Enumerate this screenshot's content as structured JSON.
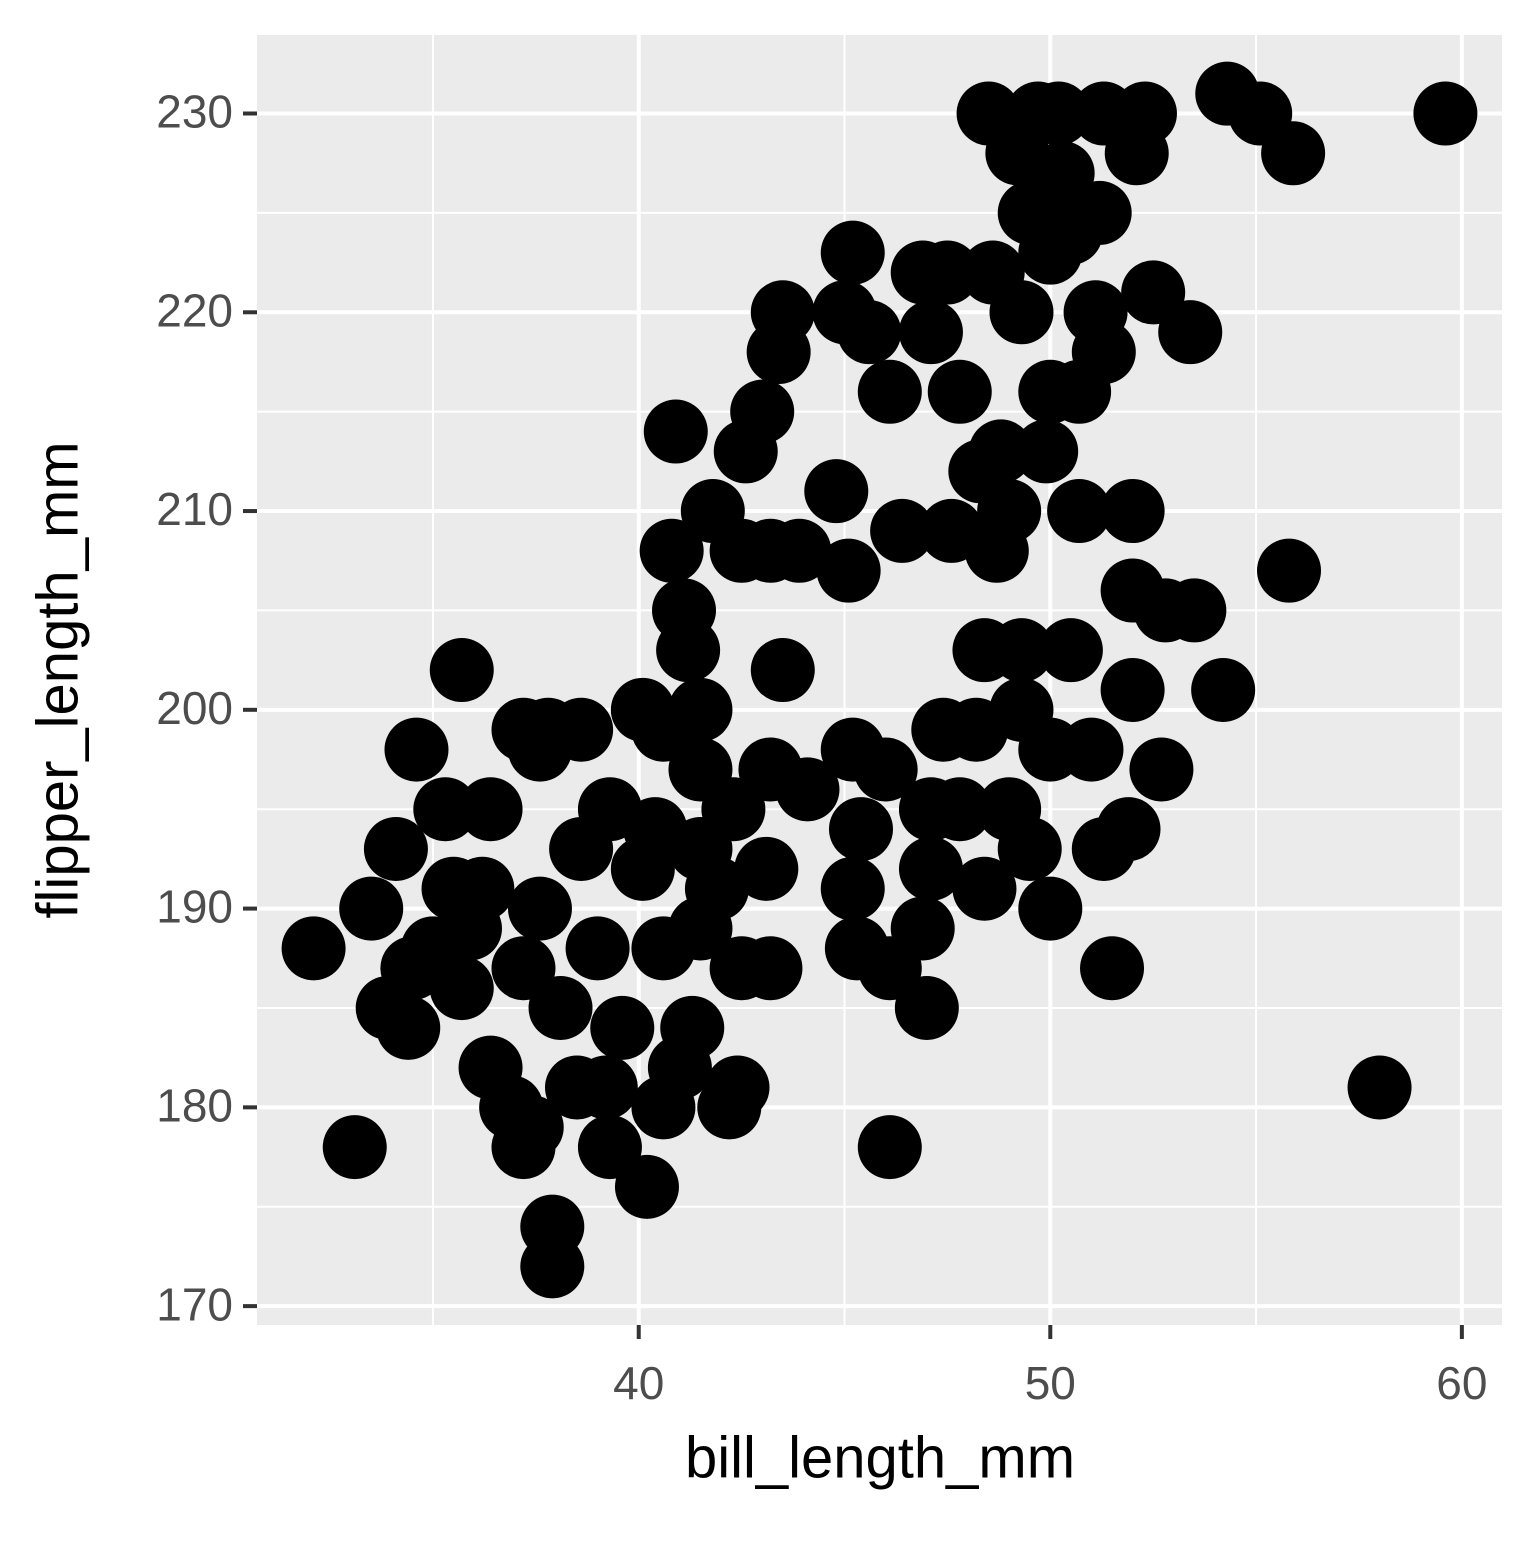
{
  "chart_data": {
    "type": "scatter",
    "x_label": "bill_length_mm",
    "y_label": "flipper_length_mm",
    "xlim": [
      30.725,
      60.975
    ],
    "ylim": [
      169.05,
      233.95
    ],
    "xticks": [
      40,
      50,
      60
    ],
    "yticks": [
      170,
      180,
      190,
      200,
      210,
      220,
      230
    ],
    "xminor": [
      35,
      45,
      55
    ],
    "yminor": [
      175,
      185,
      195,
      205,
      215,
      225
    ],
    "grid": true,
    "color": "#000000",
    "x": [
      32.1,
      33.1,
      33.5,
      34.1,
      34.6,
      33.9,
      34.4,
      35.7,
      35.3,
      36.4,
      34.5,
      35.0,
      35.7,
      36.2,
      36.4,
      37.2,
      37.2,
      37.8,
      37.6,
      37.9,
      37.9,
      38.6,
      38.5,
      39.2,
      39.3,
      40.2,
      40.6,
      42.2,
      42.4,
      40.1,
      40.6,
      41.5,
      41.2,
      41.1,
      40.8,
      40.9,
      41.8,
      42.5,
      42.6,
      43.0,
      43.4,
      43.5,
      43.2,
      43.9,
      43.5,
      43.2,
      44.1,
      43.1,
      42.5,
      43.2,
      41.9,
      41.5,
      41.3,
      41.0,
      39.6,
      38.1,
      39.0,
      37.6,
      37.2,
      38.6,
      40.1,
      39.3,
      40.4,
      41.5,
      42.3,
      36.9,
      37.4,
      45.2,
      45.1,
      45.0,
      44.8,
      45.6,
      46.1,
      46.4,
      46.9,
      47.5,
      47.1,
      47.8,
      47.6,
      48.3,
      48.8,
      49.0,
      48.7,
      48.6,
      49.3,
      49.5,
      50.0,
      50.3,
      51.2,
      50.5,
      50.0,
      50.7,
      51.3,
      51.1,
      49.9,
      48.5,
      49.7,
      50.2,
      49.2,
      51.3,
      52.3,
      52.1,
      54.3,
      55.1,
      55.9,
      59.6,
      52.5,
      53.4,
      50.7,
      52.0,
      52.0,
      52.8,
      53.5,
      55.8,
      54.2,
      58.0,
      52.0,
      52.7,
      51.5,
      51.3,
      51.9,
      51.0,
      50.5,
      50.0,
      49.5,
      49.0,
      49.3,
      50.0,
      49.3,
      48.4,
      48.4,
      47.4,
      48.2,
      47.8,
      47.1,
      46.9,
      47.0,
      46.1,
      46.1,
      45.3,
      45.2,
      45.4,
      45.2,
      46.0,
      47.1,
      41.5,
      40.6,
      35.9,
      35.5
    ],
    "values": [
      188,
      178,
      190,
      193,
      198,
      185,
      184,
      202,
      195,
      195,
      187,
      188,
      186,
      191,
      182,
      178,
      199,
      199,
      198,
      174,
      172,
      199,
      181,
      181,
      178,
      176,
      180,
      180,
      181,
      200,
      199,
      200,
      203,
      205,
      208,
      214,
      210,
      208,
      213,
      215,
      218,
      220,
      208,
      208,
      202,
      197,
      196,
      192,
      187,
      187,
      191,
      193,
      184,
      182,
      184,
      185,
      188,
      190,
      187,
      193,
      192,
      195,
      194,
      197,
      195,
      180,
      179,
      223,
      207,
      220,
      211,
      219,
      216,
      209,
      222,
      222,
      219,
      216,
      209,
      212,
      213,
      210,
      208,
      222,
      220,
      225,
      223,
      227,
      225,
      224,
      216,
      216,
      218,
      220,
      213,
      230,
      230,
      230,
      228,
      230,
      230,
      228,
      231,
      230,
      228,
      230,
      221,
      219,
      210,
      210,
      206,
      205,
      205,
      207,
      201,
      181,
      201,
      197,
      187,
      193,
      194,
      198,
      203,
      190,
      193,
      195,
      200,
      198,
      203,
      203,
      191,
      199,
      199,
      195,
      192,
      189,
      185,
      187,
      178,
      188,
      191,
      194,
      198,
      197,
      195,
      189,
      188,
      189,
      191
    ]
  }
}
